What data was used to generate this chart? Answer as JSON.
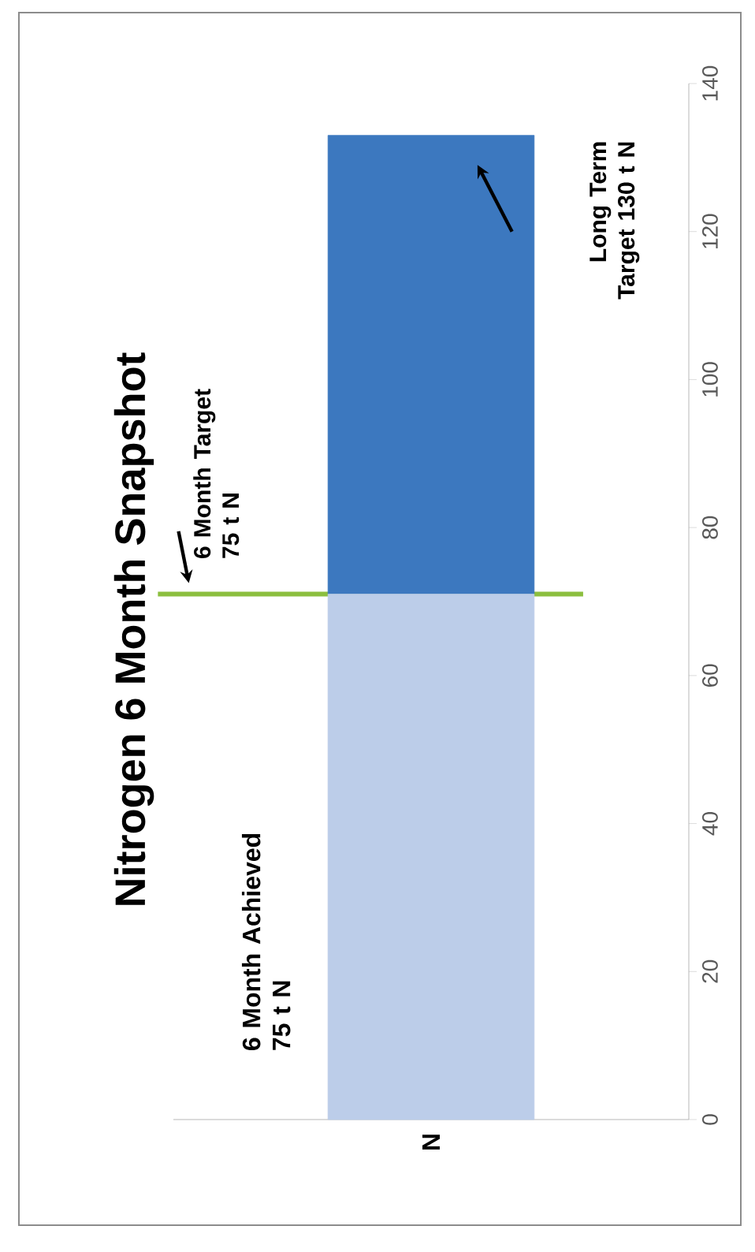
{
  "chart_data": {
    "type": "bar",
    "stacked": true,
    "title": "Nitrogen 6 Month Snapshot",
    "categories": [
      "N"
    ],
    "series": [
      {
        "color": "#bccde9",
        "values": [
          71
        ]
      },
      {
        "color": "#3c78bf",
        "values": [
          62
        ]
      }
    ],
    "ylim": [
      0,
      140
    ],
    "yticks": [
      0,
      20,
      40,
      60,
      80,
      100,
      120,
      140
    ],
    "ref_lines": [
      {
        "axis": "y",
        "value": 71,
        "label": "6 Month Target 75 t N",
        "color": "#8cbf3f"
      }
    ],
    "annotations": [
      "6 Month Achieved 75 t N",
      "Long Term Target 130 t N"
    ]
  }
}
